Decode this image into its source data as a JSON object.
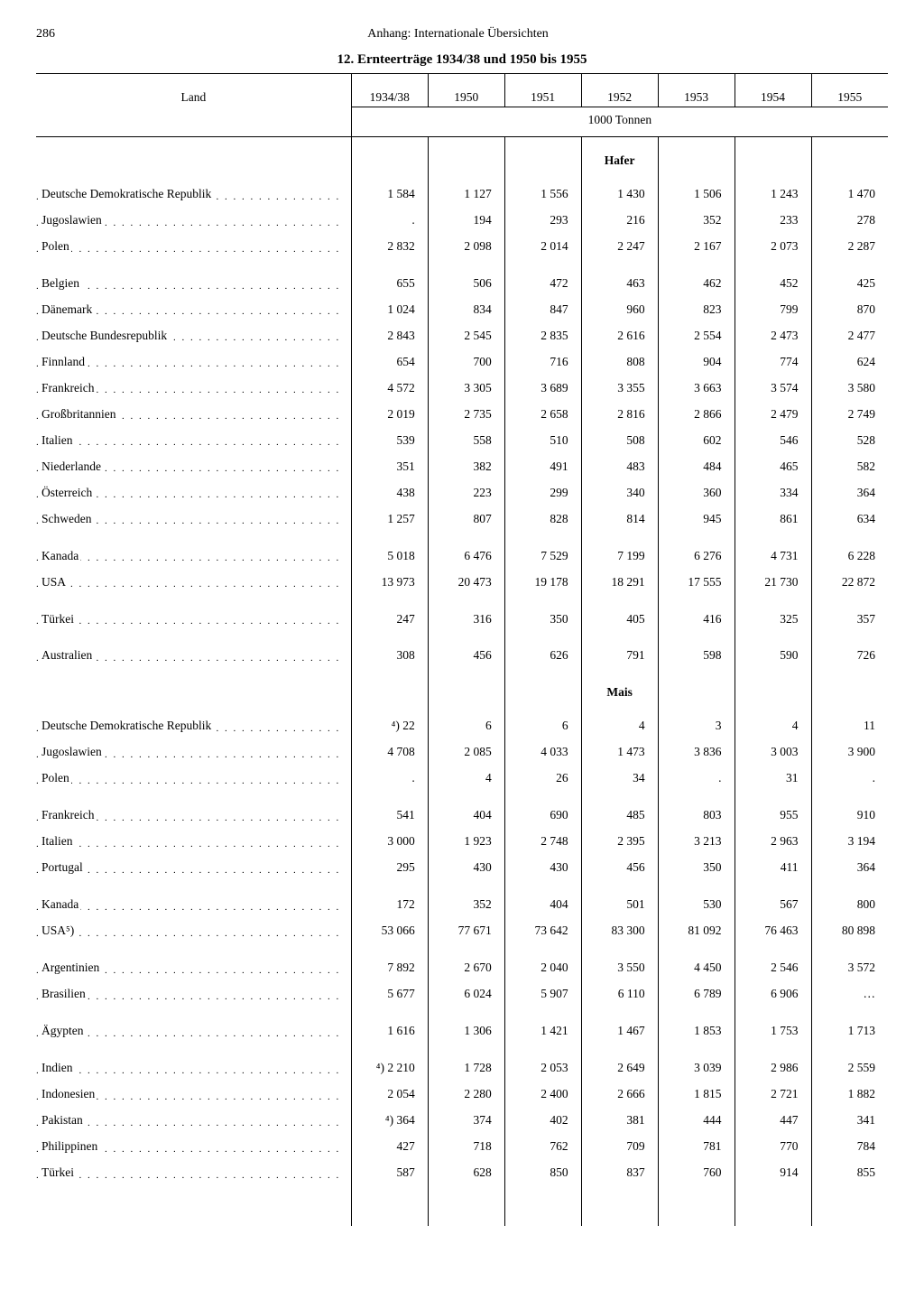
{
  "page_number": "286",
  "running_head": "Anhang: Internationale Übersichten",
  "title": "12. Ernteerträge 1934/38 und 1950 bis 1955",
  "columns": {
    "land": "Land",
    "years": [
      "1934/38",
      "1950",
      "1951",
      "1952",
      "1953",
      "1954",
      "1955"
    ],
    "unit": "1000 Tonnen"
  },
  "sections": [
    {
      "heading": "Hafer",
      "groups": [
        [
          {
            "name": "Deutsche Demokratische Republik",
            "v": [
              "1 584",
              "1 127",
              "1 556",
              "1 430",
              "1 506",
              "1 243",
              "1 470"
            ]
          },
          {
            "name": "Jugoslawien",
            "v": [
              ".",
              "194",
              "293",
              "216",
              "352",
              "233",
              "278"
            ]
          },
          {
            "name": "Polen",
            "v": [
              "2 832",
              "2 098",
              "2 014",
              "2 247",
              "2 167",
              "2 073",
              "2 287"
            ]
          }
        ],
        [
          {
            "name": "Belgien",
            "v": [
              "655",
              "506",
              "472",
              "463",
              "462",
              "452",
              "425"
            ]
          },
          {
            "name": "Dänemark",
            "v": [
              "1 024",
              "834",
              "847",
              "960",
              "823",
              "799",
              "870"
            ]
          },
          {
            "name": "Deutsche Bundesrepublik",
            "v": [
              "2 843",
              "2 545",
              "2 835",
              "2 616",
              "2 554",
              "2 473",
              "2 477"
            ]
          },
          {
            "name": "Finnland",
            "v": [
              "654",
              "700",
              "716",
              "808",
              "904",
              "774",
              "624"
            ]
          },
          {
            "name": "Frankreich",
            "v": [
              "4 572",
              "3 305",
              "3 689",
              "3 355",
              "3 663",
              "3 574",
              "3 580"
            ]
          },
          {
            "name": "Großbritannien",
            "v": [
              "2 019",
              "2 735",
              "2 658",
              "2 816",
              "2 866",
              "2 479",
              "2 749"
            ]
          },
          {
            "name": "Italien",
            "v": [
              "539",
              "558",
              "510",
              "508",
              "602",
              "546",
              "528"
            ]
          },
          {
            "name": "Niederlande",
            "v": [
              "351",
              "382",
              "491",
              "483",
              "484",
              "465",
              "582"
            ]
          },
          {
            "name": "Österreich",
            "v": [
              "438",
              "223",
              "299",
              "340",
              "360",
              "334",
              "364"
            ]
          },
          {
            "name": "Schweden",
            "v": [
              "1 257",
              "807",
              "828",
              "814",
              "945",
              "861",
              "634"
            ]
          }
        ],
        [
          {
            "name": "Kanada",
            "v": [
              "5 018",
              "6 476",
              "7 529",
              "7 199",
              "6 276",
              "4 731",
              "6 228"
            ]
          },
          {
            "name": "USA",
            "v": [
              "13 973",
              "20 473",
              "19 178",
              "18 291",
              "17 555",
              "21 730",
              "22 872"
            ]
          }
        ],
        [
          {
            "name": "Türkei",
            "v": [
              "247",
              "316",
              "350",
              "405",
              "416",
              "325",
              "357"
            ]
          }
        ],
        [
          {
            "name": "Australien",
            "v": [
              "308",
              "456",
              "626",
              "791",
              "598",
              "590",
              "726"
            ]
          }
        ]
      ]
    },
    {
      "heading": "Mais",
      "groups": [
        [
          {
            "name": "Deutsche Demokratische Republik",
            "v": [
              "⁴) 22",
              "6",
              "6",
              "4",
              "3",
              "4",
              "11"
            ]
          },
          {
            "name": "Jugoslawien",
            "v": [
              "4 708",
              "2 085",
              "4 033",
              "1 473",
              "3 836",
              "3 003",
              "3 900"
            ]
          },
          {
            "name": "Polen",
            "v": [
              ".",
              "4",
              "26",
              "34",
              ".",
              "31",
              "."
            ]
          }
        ],
        [
          {
            "name": "Frankreich",
            "v": [
              "541",
              "404",
              "690",
              "485",
              "803",
              "955",
              "910"
            ]
          },
          {
            "name": "Italien",
            "v": [
              "3 000",
              "1 923",
              "2 748",
              "2 395",
              "3 213",
              "2 963",
              "3 194"
            ]
          },
          {
            "name": "Portugal",
            "v": [
              "295",
              "430",
              "430",
              "456",
              "350",
              "411",
              "364"
            ]
          }
        ],
        [
          {
            "name": "Kanada",
            "v": [
              "172",
              "352",
              "404",
              "501",
              "530",
              "567",
              "800"
            ]
          },
          {
            "name": "USA⁵)",
            "v": [
              "53 066",
              "77 671",
              "73 642",
              "83 300",
              "81 092",
              "76 463",
              "80 898"
            ]
          }
        ],
        [
          {
            "name": "Argentinien",
            "v": [
              "7 892",
              "2 670",
              "2 040",
              "3 550",
              "4 450",
              "2 546",
              "3 572"
            ]
          },
          {
            "name": "Brasilien",
            "v": [
              "5 677",
              "6 024",
              "5 907",
              "6 110",
              "6 789",
              "6 906",
              "…"
            ]
          }
        ],
        [
          {
            "name": "Ägypten",
            "v": [
              "1 616",
              "1 306",
              "1 421",
              "1 467",
              "1 853",
              "1 753",
              "1 713"
            ]
          }
        ],
        [
          {
            "name": "Indien",
            "v": [
              "⁴) 2 210",
              "1 728",
              "2 053",
              "2 649",
              "3 039",
              "2 986",
              "2 559"
            ]
          },
          {
            "name": "Indonesien",
            "v": [
              "2 054",
              "2 280",
              "2 400",
              "2 666",
              "1 815",
              "2 721",
              "1 882"
            ]
          },
          {
            "name": "Pakistan",
            "v": [
              "⁴) 364",
              "374",
              "402",
              "381",
              "444",
              "447",
              "341"
            ]
          },
          {
            "name": "Philippinen",
            "v": [
              "427",
              "718",
              "762",
              "709",
              "781",
              "770",
              "784"
            ]
          },
          {
            "name": "Türkei",
            "v": [
              "587",
              "628",
              "850",
              "837",
              "760",
              "914",
              "855"
            ]
          }
        ]
      ]
    }
  ]
}
